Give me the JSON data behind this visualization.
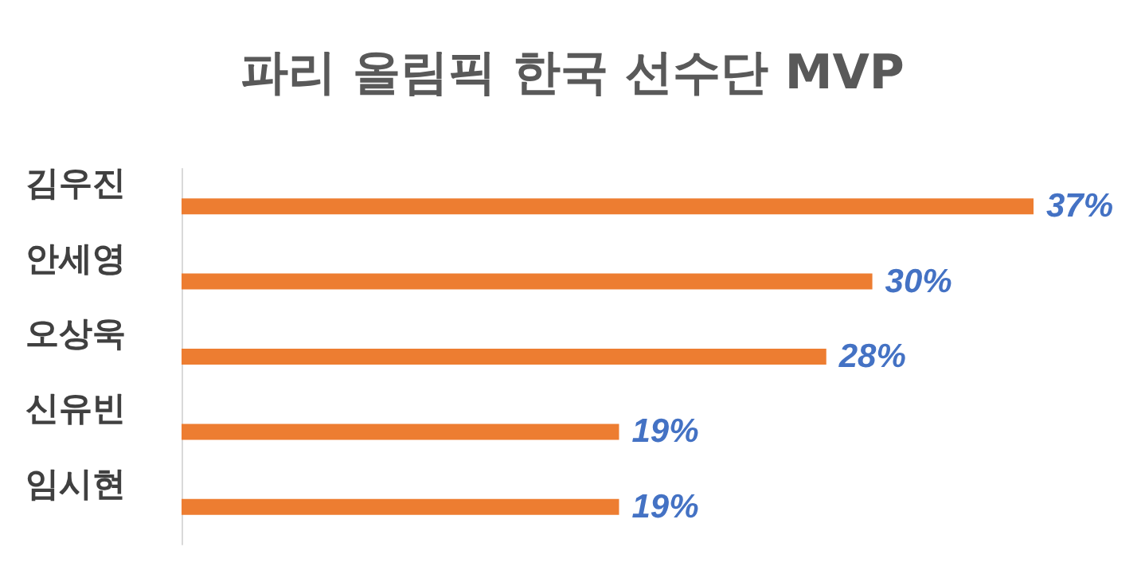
{
  "chart_data": {
    "type": "bar",
    "orientation": "horizontal",
    "title": "파리 올림픽 한국 선수단 MVP",
    "categories": [
      "김우진",
      "안세영",
      "오상욱",
      "신유빈",
      "임시현"
    ],
    "values": [
      37,
      30,
      28,
      19,
      19
    ],
    "value_labels": [
      "37%",
      "30%",
      "28%",
      "19%",
      "19%"
    ],
    "color": "#ed7d31"
  }
}
